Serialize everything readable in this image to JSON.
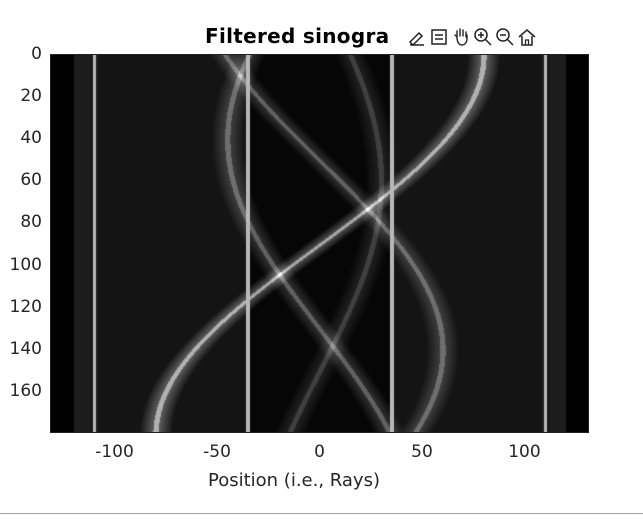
{
  "figure": {
    "title": "Filtered sinogra",
    "xlabel": "Position (i.e., Rays)",
    "toolbar": [
      {
        "name": "edit-plot-icon",
        "title": ""
      },
      {
        "name": "legend-icon",
        "title": ""
      },
      {
        "name": "pan-hand-icon",
        "title": ""
      },
      {
        "name": "zoom-in-icon",
        "title": ""
      },
      {
        "name": "zoom-out-icon",
        "title": ""
      },
      {
        "name": "home-icon",
        "title": ""
      }
    ]
  },
  "chart_data": {
    "type": "heatmap",
    "title": "Filtered sinogra",
    "xlabel": "Position (i.e., Rays)",
    "ylabel": "",
    "xlim": [
      -131,
      131
    ],
    "ylim": [
      0,
      179
    ],
    "y_direction": "reversed",
    "colormap": "gray",
    "x_ticks": [
      -100,
      -50,
      0,
      50,
      100
    ],
    "x_tick_labels": [
      "-100",
      "-50",
      "0",
      "50",
      "100"
    ],
    "y_ticks": [
      0,
      20,
      40,
      60,
      80,
      100,
      120,
      140,
      160
    ],
    "y_tick_labels": [
      "0",
      "20",
      "40",
      "60",
      "80",
      "100",
      "120",
      "140",
      "160"
    ],
    "vertical_lines_x": [
      -110,
      -35,
      35,
      110
    ],
    "sinusoid_features": [
      {
        "amplitude": 80,
        "phase_deg": 0,
        "brightness": "high"
      },
      {
        "amplitude": 60,
        "phase_deg": 140,
        "brightness": "medium"
      },
      {
        "amplitude": 45,
        "phase_deg": 220,
        "brightness": "medium"
      },
      {
        "amplitude": 30,
        "phase_deg": 60,
        "brightness": "low"
      }
    ]
  }
}
